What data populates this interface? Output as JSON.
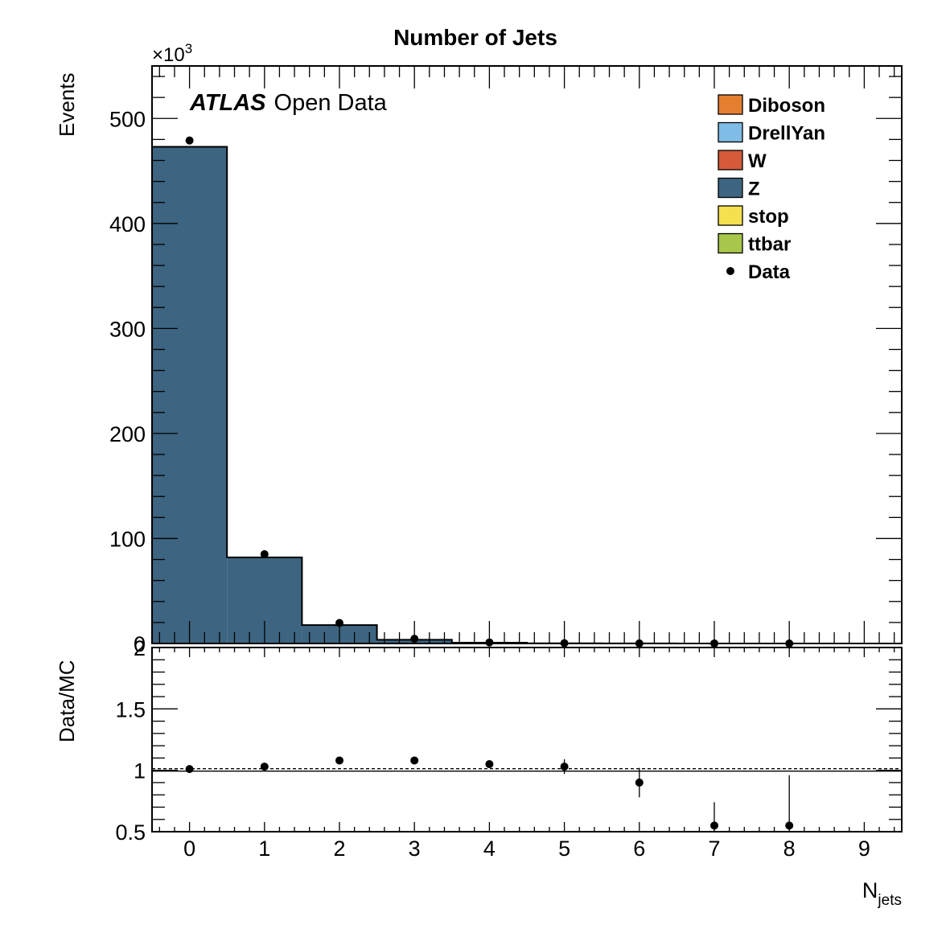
{
  "chart_data": [
    {
      "panel": "main",
      "type": "bar",
      "title": "Number of Jets",
      "annotation": {
        "experiment": "ATLAS",
        "label": "Open Data"
      },
      "ylabel": "Events",
      "yscale_label": "×10",
      "yscale_exp": "3",
      "xlim": [
        -0.5,
        9.5
      ],
      "ylim": [
        0,
        550
      ],
      "y_ticks": [
        {
          "v": 0,
          "label": "0"
        },
        {
          "v": 100,
          "label": "100"
        },
        {
          "v": 200,
          "label": "200"
        },
        {
          "v": 300,
          "label": "300"
        },
        {
          "v": 400,
          "label": "400"
        },
        {
          "v": 500,
          "label": "500"
        }
      ],
      "bins": [
        0,
        1,
        2,
        3,
        4,
        5,
        6,
        7,
        8,
        9
      ],
      "series": [
        {
          "name": "Diboson",
          "color": "#e67e30",
          "values": [
            0,
            0,
            0,
            0,
            0,
            0,
            0,
            0,
            0,
            0
          ]
        },
        {
          "name": "DrellYan",
          "color": "#7fbce6",
          "values": [
            0,
            0,
            0,
            0,
            0,
            0,
            0,
            0,
            0,
            0
          ]
        },
        {
          "name": "W",
          "color": "#d45a3a",
          "values": [
            0,
            0,
            0,
            0,
            0,
            0,
            0,
            0,
            0,
            0
          ]
        },
        {
          "name": "Z",
          "color": "#3d6480",
          "values": [
            473,
            82,
            17.5,
            3.5,
            0.8,
            0.2,
            0.05,
            0.02,
            0.01,
            0
          ]
        },
        {
          "name": "stop",
          "color": "#f5e050",
          "values": [
            0,
            0,
            0,
            0,
            0,
            0,
            0,
            0,
            0,
            0
          ]
        },
        {
          "name": "ttbar",
          "color": "#a6c74a",
          "values": [
            0,
            0,
            0,
            0,
            0,
            0,
            0,
            0,
            0,
            0
          ]
        }
      ],
      "data": {
        "name": "Data",
        "x": [
          0,
          1,
          2,
          3,
          4,
          5,
          6,
          7,
          8
        ],
        "y": [
          479,
          85,
          19.5,
          4.5,
          1.0,
          0.3,
          0.1,
          0.03,
          0.01
        ]
      }
    },
    {
      "panel": "ratio",
      "type": "scatter",
      "ylabel": "Data/MC",
      "xlabel": "N",
      "xlabel_sub": "jets",
      "xlim": [
        -0.5,
        9.5
      ],
      "ylim": [
        0.5,
        2
      ],
      "reference_line": 1,
      "y_ticks": [
        {
          "v": 0.5,
          "label": "0.5"
        },
        {
          "v": 1,
          "label": "1"
        },
        {
          "v": 1.5,
          "label": "1.5"
        },
        {
          "v": 2,
          "label": "2"
        }
      ],
      "x_ticks": [
        {
          "v": 0,
          "label": "0"
        },
        {
          "v": 1,
          "label": "1"
        },
        {
          "v": 2,
          "label": "2"
        },
        {
          "v": 3,
          "label": "3"
        },
        {
          "v": 4,
          "label": "4"
        },
        {
          "v": 5,
          "label": "5"
        },
        {
          "v": 6,
          "label": "6"
        },
        {
          "v": 7,
          "label": "7"
        },
        {
          "v": 8,
          "label": "8"
        },
        {
          "v": 9,
          "label": "9"
        }
      ],
      "points": [
        {
          "x": 0,
          "y": 1.01,
          "err": 0.002
        },
        {
          "x": 1,
          "y": 1.03,
          "err": 0.005
        },
        {
          "x": 2,
          "y": 1.08,
          "err": 0.01
        },
        {
          "x": 3,
          "y": 1.08,
          "err": 0.02
        },
        {
          "x": 4,
          "y": 1.05,
          "err": 0.03
        },
        {
          "x": 5,
          "y": 1.03,
          "err": 0.06
        },
        {
          "x": 6,
          "y": 0.9,
          "err": 0.12
        },
        {
          "x": 7,
          "y": 0.55,
          "err": 0.19
        },
        {
          "x": 8,
          "y": 0.55,
          "err": 0.41
        }
      ]
    }
  ]
}
